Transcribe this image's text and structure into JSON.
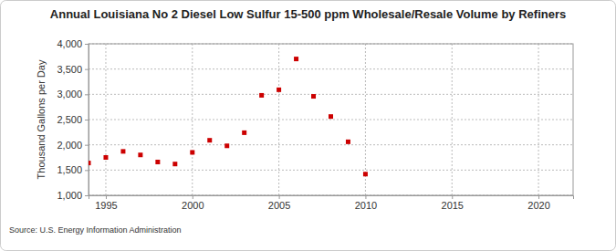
{
  "chart_data": {
    "type": "scatter",
    "title": "Annual Louisiana No 2 Diesel Low Sulfur 15-500 ppm Wholesale/Resale Volume by Refiners",
    "y_label": "Thousand Gallons per Day",
    "source": "Source: U.S. Energy Information Administration",
    "x": [
      1994,
      1995,
      1996,
      1997,
      1998,
      1999,
      2000,
      2001,
      2002,
      2003,
      2004,
      2005,
      2006,
      2007,
      2008,
      2009,
      2010
    ],
    "values": [
      1640,
      1750,
      1870,
      1800,
      1660,
      1620,
      1850,
      2090,
      1980,
      2240,
      2980,
      3090,
      3700,
      2960,
      2560,
      2060,
      1420
    ],
    "color": "#cc0000",
    "marker": "square",
    "xlim": [
      1994,
      2022
    ],
    "xticks": [
      1995,
      2000,
      2005,
      2010,
      2015,
      2020
    ],
    "ylim": [
      1000,
      4000
    ],
    "yticks": [
      {
        "value": 1000,
        "label": "1,000"
      },
      {
        "value": 1500,
        "label": "1,500"
      },
      {
        "value": 2000,
        "label": "2,000"
      },
      {
        "value": 2500,
        "label": "2,500"
      },
      {
        "value": 3000,
        "label": "3,000"
      },
      {
        "value": 3500,
        "label": "3,500"
      },
      {
        "value": 4000,
        "label": "4,000"
      }
    ],
    "grid": true
  }
}
